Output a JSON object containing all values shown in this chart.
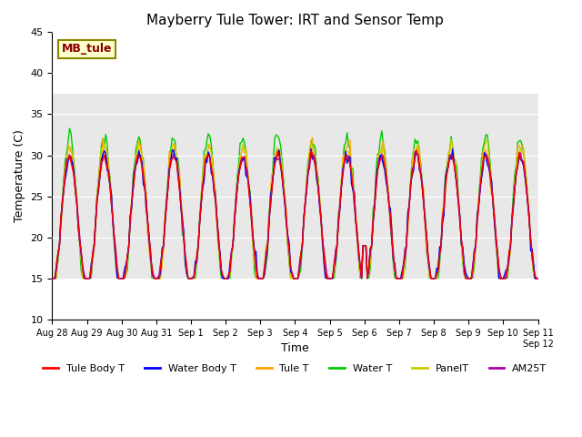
{
  "title": "Mayberry Tule Tower: IRT and Sensor Temp",
  "xlabel": "Time",
  "ylabel": "Temperature (C)",
  "ylim": [
    10,
    45
  ],
  "xlim": [
    0,
    336
  ],
  "xtick_positions": [
    0,
    24,
    48,
    72,
    96,
    120,
    144,
    168,
    192,
    216,
    240,
    264,
    288,
    312,
    336
  ],
  "xtick_labels": [
    "Aug 28",
    "Aug 29",
    "Aug 30",
    "Aug 31",
    "Sep 1",
    "Sep 2",
    "Sep 3",
    "Sep 4",
    "Sep 5",
    "Sep 6",
    "Sep 7",
    "Sep 8",
    "Sep 9",
    "Sep 10",
    "Sep 11"
  ],
  "extra_tick_label": "Sep 12",
  "annotation_text": "MB_tule",
  "annotation_box_color": "#ffffcc",
  "annotation_text_color": "#8b0000",
  "bg_band_low": 15,
  "bg_band_high": 37.5,
  "bg_color": "#e8e8e8",
  "series_colors": {
    "Tule Body T": "#ff0000",
    "Water Body T": "#0000ff",
    "Tule T": "#ffa500",
    "Water T": "#00cc00",
    "PanelT": "#cccc00",
    "AM25T": "#aa00aa"
  },
  "legend_entries": [
    "Tule Body T",
    "Water Body T",
    "Tule T",
    "Water T",
    "PanelT",
    "AM25T"
  ]
}
